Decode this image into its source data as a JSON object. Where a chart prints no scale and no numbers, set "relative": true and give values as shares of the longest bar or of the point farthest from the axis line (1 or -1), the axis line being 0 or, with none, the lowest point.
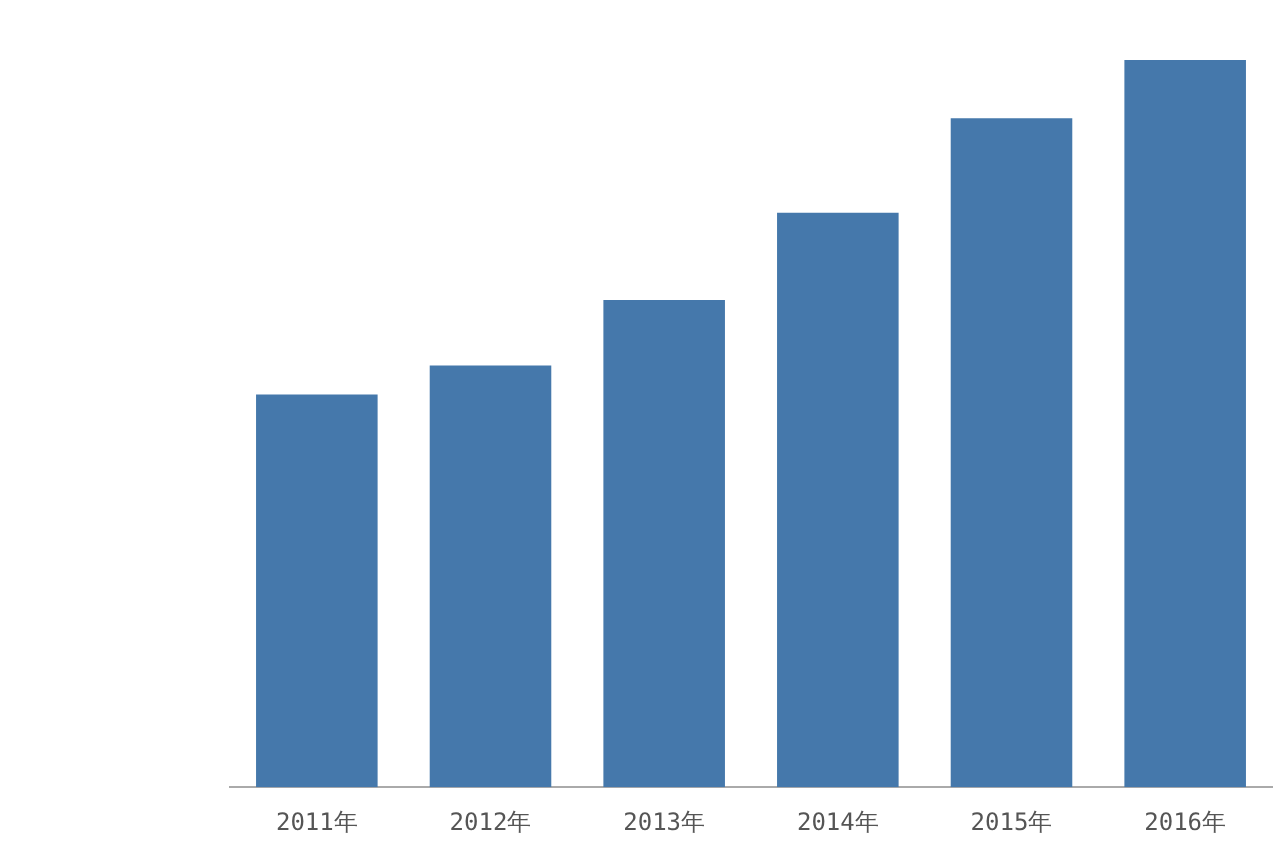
{
  "chart_data": {
    "type": "bar",
    "relative": true,
    "categories": [
      "2011年",
      "2012年",
      "2013年",
      "2014年",
      "2015年",
      "2016年"
    ],
    "values": [
      0.54,
      0.58,
      0.67,
      0.79,
      0.92,
      1
    ],
    "color": "#4578ab"
  }
}
